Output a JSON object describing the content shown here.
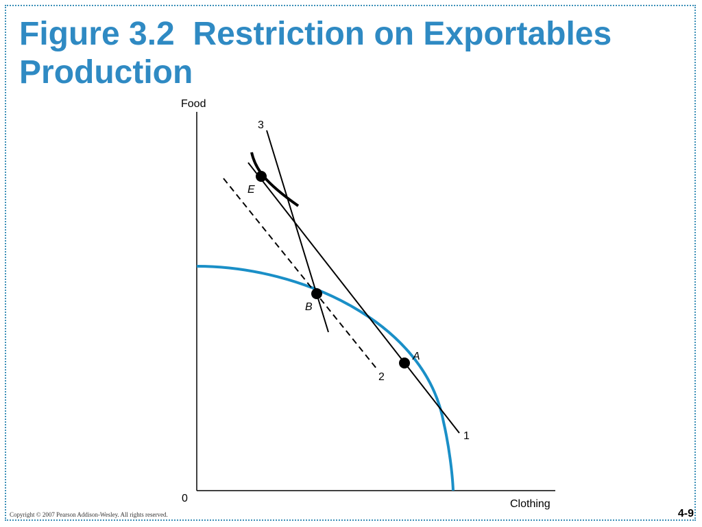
{
  "title": {
    "line1": "Figure 3.2  Restriction on Exportables",
    "line2": "Production"
  },
  "axes": {
    "y_label": "Food",
    "x_label": "Clothing",
    "origin": "0"
  },
  "points": {
    "A": "A",
    "B": "B",
    "E": "E"
  },
  "lines": {
    "line1": "1",
    "line2": "2",
    "line3": "3"
  },
  "colors": {
    "title": "#2f8ac3",
    "ppf": "#1a8fc7",
    "ink": "#000000"
  },
  "footer": {
    "copyright": "Copyright © 2007 Pearson Addison-Wesley. All rights reserved.",
    "slide_number": "4-9"
  }
}
